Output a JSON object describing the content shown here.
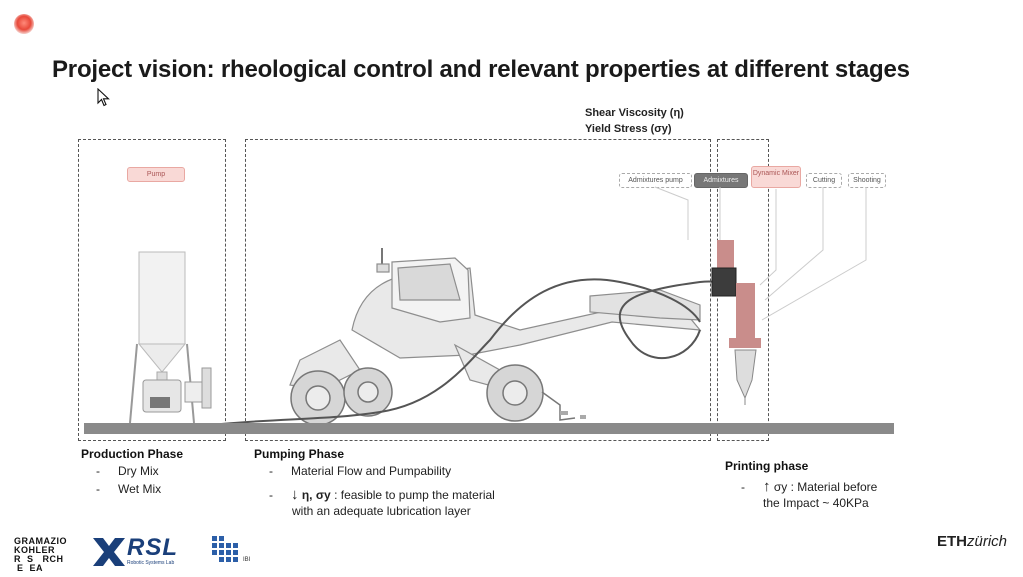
{
  "title": "Project vision: rheological control and relevant properties at different stages",
  "properties": {
    "line1": "Shear Viscosity (η)",
    "line2": "Yield Stress (σy)"
  },
  "labels": {
    "pump": "Pump",
    "admixtures_pump": "Admixtures pump",
    "admixtures": "Admixtures",
    "dynamic_mixer": "Dynamic Mixer",
    "cutting": "Cutting",
    "shooting": "Shooting"
  },
  "phases": {
    "production": {
      "title": "Production Phase",
      "items": [
        "Dry Mix",
        "Wet Mix"
      ]
    },
    "pumping": {
      "title": "Pumping Phase",
      "item1": "Material Flow and Pumpability",
      "item2_arrow": "↓",
      "item2_bold": "η, σy",
      "item2_text": " : feasible to pump the material",
      "item2_line2": "with an adequate lubrication layer"
    },
    "printing": {
      "title": "Printing phase",
      "item_arrow": "↑",
      "item_bold": "σy",
      "item_text": " : Material before",
      "item_line2": "the Impact ~ 40KPa"
    }
  },
  "footer": {
    "gk_line1": "GRAMAZIO",
    "gk_line2": "KOHLER",
    "gk_line3": "R  S   RCH",
    "gk_line4": " E  EA",
    "rsl": "RSL",
    "rsl_sub": "Robotic Systems Lab",
    "ibi": "IBI",
    "eth_bold": "ETH",
    "eth_italic": "zürich"
  },
  "colors": {
    "recording_dot": "#e8493a",
    "print_head": "#c98d8b",
    "ground": "#8a8a8a",
    "rsl_blue": "#1a3f7a",
    "ibi_blue": "#2c5fa8"
  }
}
